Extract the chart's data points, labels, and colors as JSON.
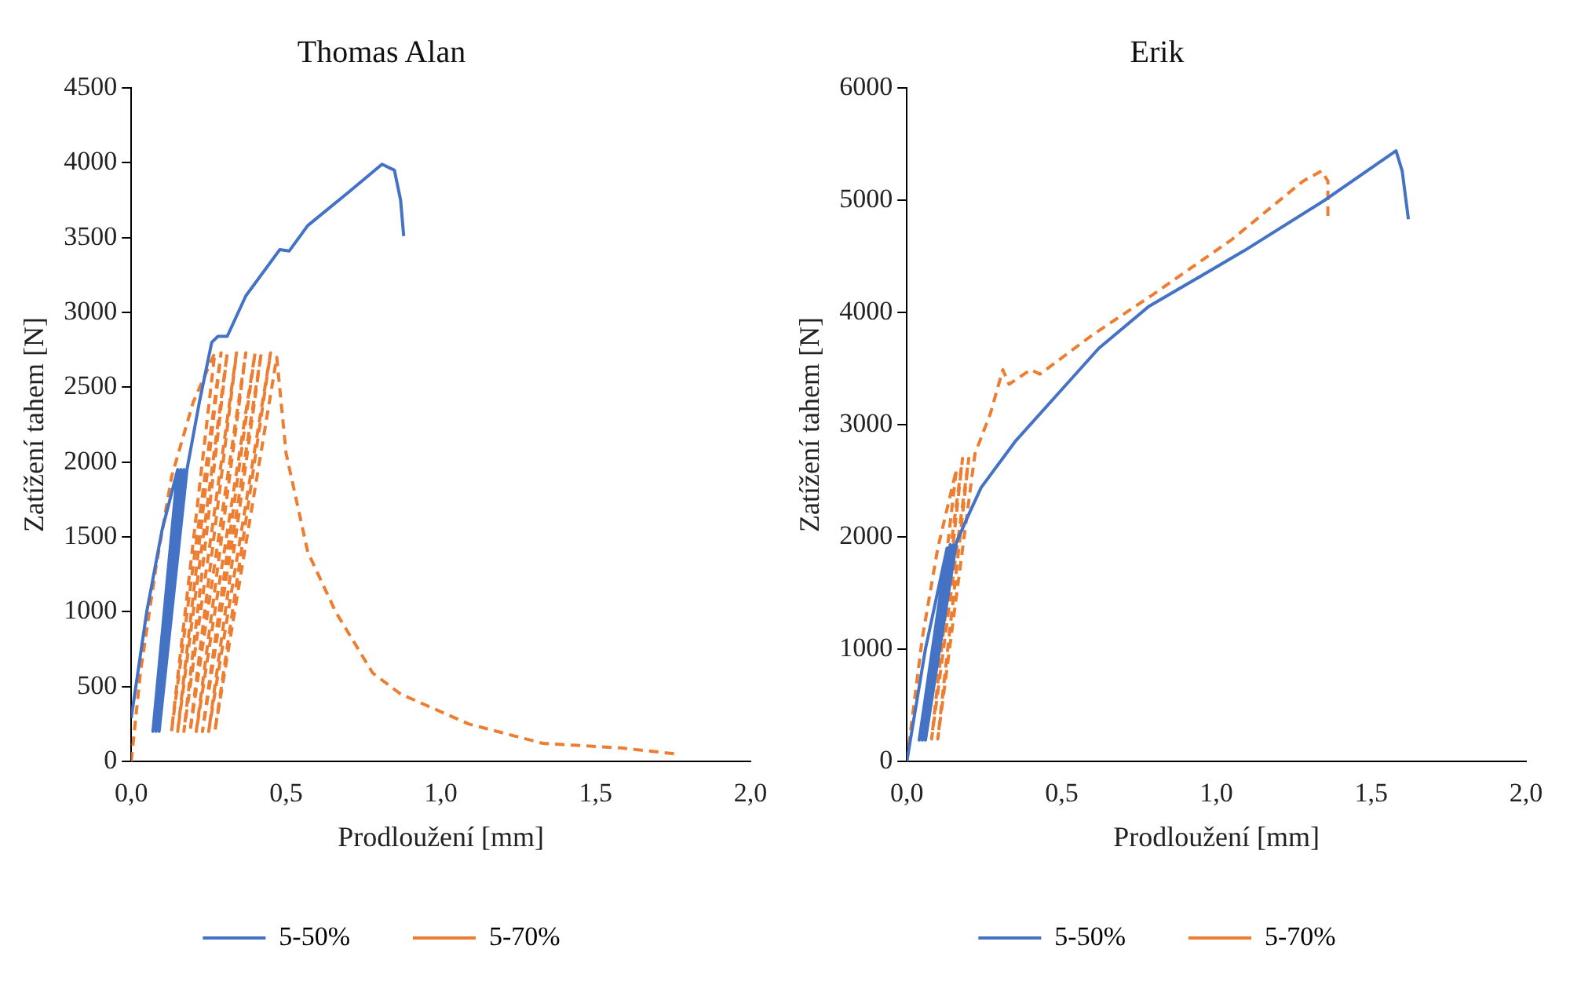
{
  "chart_data": [
    {
      "type": "line",
      "title": "Thomas Alan",
      "xlabel": "Prodloužení [mm]",
      "ylabel": "Zatížení tahem [N]",
      "xlim": [
        0,
        2
      ],
      "xticks": [
        {
          "value": 0,
          "label": "0,0"
        },
        {
          "value": 0.5,
          "label": "0,5"
        },
        {
          "value": 1,
          "label": "1,0"
        },
        {
          "value": 1.5,
          "label": "1,5"
        },
        {
          "value": 2,
          "label": "2,0"
        }
      ],
      "ylim": [
        0,
        4500
      ],
      "yticks": [
        0,
        500,
        1000,
        1500,
        2000,
        2500,
        3000,
        3500,
        4000,
        4500
      ],
      "grid": false,
      "legend": "bottom",
      "marker": "none",
      "series": [
        {
          "name": "5-50%",
          "color": "#4472c4",
          "line_style": "solid",
          "x": [
            0,
            0.05,
            0.1,
            0.15,
            0.07,
            0.16,
            0.08,
            0.17,
            0.09,
            0.18,
            0.22,
            0.26,
            0.28,
            0.31,
            0.37,
            0.48,
            0.51,
            0.57,
            0.7,
            0.81,
            0.85,
            0.87,
            0.88
          ],
          "values": [
            290,
            1000,
            1550,
            1950,
            200,
            1950,
            200,
            1950,
            200,
            1950,
            2400,
            2800,
            2840,
            2840,
            3110,
            3420,
            3410,
            3580,
            3800,
            3990,
            3950,
            3750,
            3510
          ]
        },
        {
          "name": "5-70%",
          "color": "#ed7d31",
          "line_style": "dashed",
          "x": [
            0,
            0.03,
            0.08,
            0.13,
            0.2,
            0.27,
            0.13,
            0.29,
            0.15,
            0.31,
            0.17,
            0.34,
            0.19,
            0.37,
            0.21,
            0.4,
            0.23,
            0.42,
            0.25,
            0.45,
            0.27,
            0.47,
            0.5,
            0.57,
            0.66,
            0.78,
            0.87,
            1.09,
            1.33,
            1.58,
            1.76
          ],
          "values": [
            0,
            600,
            1300,
            1900,
            2400,
            2730,
            200,
            2730,
            200,
            2730,
            200,
            2730,
            200,
            2730,
            200,
            2730,
            200,
            2730,
            200,
            2730,
            200,
            2700,
            2060,
            1400,
            1000,
            590,
            450,
            250,
            120,
            90,
            50
          ]
        }
      ]
    },
    {
      "type": "line",
      "title": "Erik",
      "xlabel": "Prodloužení [mm]",
      "ylabel": "Zatížení tahem [N]",
      "xlim": [
        0,
        2
      ],
      "xticks": [
        {
          "value": 0,
          "label": "0,0"
        },
        {
          "value": 0.5,
          "label": "0,5"
        },
        {
          "value": 1,
          "label": "1,0"
        },
        {
          "value": 1.5,
          "label": "1,5"
        },
        {
          "value": 2,
          "label": "2,0"
        }
      ],
      "ylim": [
        0,
        6000
      ],
      "yticks": [
        0,
        1000,
        2000,
        3000,
        4000,
        5000,
        6000
      ],
      "grid": false,
      "legend": "bottom",
      "marker": "none",
      "series": [
        {
          "name": "5-50%",
          "color": "#4472c4",
          "line_style": "solid",
          "x": [
            0,
            0.06,
            0.13,
            0.04,
            0.14,
            0.05,
            0.15,
            0.06,
            0.16,
            0.2,
            0.24,
            0.35,
            0.48,
            0.62,
            0.78,
            1.09,
            1.35,
            1.58,
            1.6,
            1.62
          ],
          "values": [
            0,
            1000,
            1900,
            190,
            1930,
            190,
            1930,
            190,
            1950,
            2200,
            2440,
            2850,
            3250,
            3680,
            4050,
            4550,
            5000,
            5440,
            5260,
            4830
          ]
        },
        {
          "name": "5-70%",
          "color": "#ed7d31",
          "line_style": "dashed",
          "x": [
            0,
            0.05,
            0.1,
            0.16,
            0.06,
            0.18,
            0.08,
            0.2,
            0.1,
            0.22,
            0.27,
            0.31,
            0.33,
            0.4,
            0.43,
            0.6,
            0.79,
            1.05,
            1.28,
            1.34,
            1.36,
            1.36
          ],
          "values": [
            0,
            1100,
            1900,
            2600,
            200,
            2700,
            200,
            2700,
            200,
            2740,
            3100,
            3490,
            3360,
            3490,
            3450,
            3800,
            4150,
            4650,
            5170,
            5260,
            5170,
            4860
          ]
        }
      ]
    }
  ]
}
